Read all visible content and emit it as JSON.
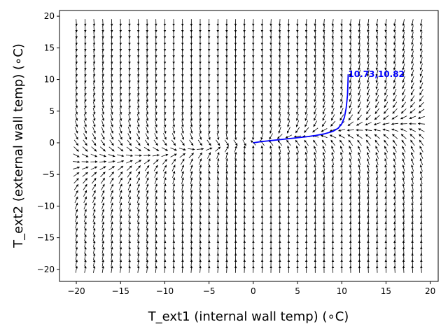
{
  "chart_data": {
    "type": "quiver",
    "xlabel": "T_ext1 (internal wall temp) ($^\\circ$C)",
    "ylabel": "T_ext2 (external wall temp) ($^\\circ$C)",
    "xlabel_display": "T_ext1 (internal wall temp) (∘C)",
    "ylabel_display": "T_ext2 (external wall temp) (∘C)",
    "xlim": [
      -21.9,
      20.9
    ],
    "ylim": [
      -21.9,
      20.9
    ],
    "xticks": [
      -20,
      -15,
      -10,
      -5,
      0,
      5,
      10,
      15,
      20
    ],
    "yticks": [
      -20,
      -15,
      -10,
      -5,
      0,
      5,
      10,
      15,
      20
    ],
    "grid": false,
    "vector_field": {
      "x_range": [
        -20,
        19
      ],
      "y_range": [
        -20,
        19
      ],
      "step": 1,
      "description": "Normalized direction field; arrows flow toward the curve y ~ x/6 and converge on the origin"
    },
    "trajectory": {
      "color": "#0000ff",
      "points": [
        [
          0,
          0
        ],
        [
          1,
          0.2
        ],
        [
          2,
          0.35
        ],
        [
          3,
          0.5
        ],
        [
          4,
          0.65
        ],
        [
          5,
          0.8
        ],
        [
          6,
          0.95
        ],
        [
          7,
          1.15
        ],
        [
          8,
          1.4
        ],
        [
          9,
          1.8
        ],
        [
          9.6,
          2.3
        ],
        [
          10.0,
          3.0
        ],
        [
          10.3,
          4.0
        ],
        [
          10.5,
          5.5
        ],
        [
          10.65,
          7.5
        ],
        [
          10.7,
          9.5
        ],
        [
          10.73,
          10.82
        ]
      ]
    },
    "annotation": {
      "text": "10.73,10.82",
      "x": 10.73,
      "y": 10.82,
      "color": "#0000ff"
    }
  }
}
